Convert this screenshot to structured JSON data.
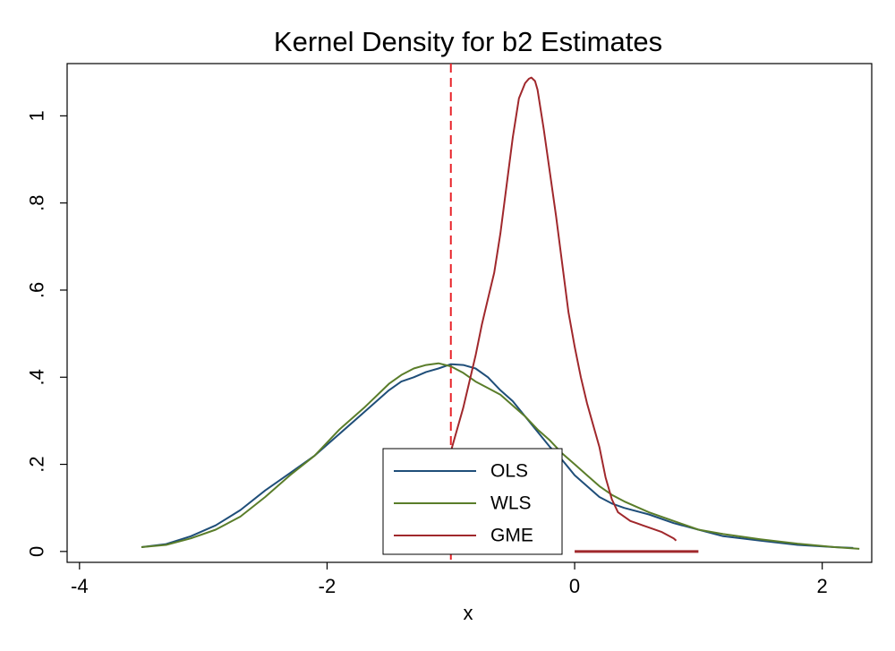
{
  "chart_data": {
    "type": "line",
    "title": "Kernel Density for b2 Estimates",
    "xlabel": "x",
    "ylabel": "",
    "xlim": [
      -4.1,
      2.4
    ],
    "ylim": [
      -0.025,
      1.12
    ],
    "xticks": [
      -4,
      -2,
      0,
      2
    ],
    "xtick_labels": [
      "-4",
      "-2",
      "0",
      "2"
    ],
    "yticks": [
      0,
      0.2,
      0.4,
      0.6,
      0.8,
      1
    ],
    "ytick_labels": [
      "0",
      ".2",
      ".4",
      ".6",
      ".8",
      "1"
    ],
    "grid": false,
    "legend_position": "bottom-center",
    "reference_line": {
      "x": -1,
      "style": "dashed",
      "color": "#e8242a"
    },
    "series": [
      {
        "name": "OLS",
        "color": "#1f4e79",
        "x": [
          -3.5,
          -3.3,
          -3.1,
          -2.9,
          -2.7,
          -2.5,
          -2.3,
          -2.1,
          -1.9,
          -1.7,
          -1.5,
          -1.4,
          -1.3,
          -1.2,
          -1.1,
          -1.0,
          -0.9,
          -0.8,
          -0.7,
          -0.6,
          -0.5,
          -0.4,
          -0.3,
          -0.2,
          -0.1,
          0.0,
          0.1,
          0.2,
          0.3,
          0.4,
          0.6,
          0.8,
          1.0,
          1.2,
          1.5,
          1.8,
          2.1,
          2.25
        ],
        "y": [
          0.01,
          0.017,
          0.035,
          0.06,
          0.095,
          0.14,
          0.18,
          0.22,
          0.27,
          0.32,
          0.37,
          0.39,
          0.4,
          0.412,
          0.42,
          0.43,
          0.428,
          0.42,
          0.4,
          0.37,
          0.345,
          0.31,
          0.275,
          0.24,
          0.21,
          0.175,
          0.15,
          0.125,
          0.11,
          0.1,
          0.085,
          0.065,
          0.05,
          0.035,
          0.025,
          0.015,
          0.01,
          0.008
        ]
      },
      {
        "name": "WLS",
        "color": "#5a7d2a",
        "x": [
          -3.5,
          -3.3,
          -3.1,
          -2.9,
          -2.7,
          -2.5,
          -2.3,
          -2.1,
          -1.9,
          -1.7,
          -1.5,
          -1.4,
          -1.3,
          -1.2,
          -1.1,
          -1.0,
          -0.9,
          -0.8,
          -0.7,
          -0.6,
          -0.5,
          -0.4,
          -0.3,
          -0.2,
          -0.1,
          0.0,
          0.1,
          0.2,
          0.3,
          0.4,
          0.6,
          0.8,
          1.0,
          1.2,
          1.5,
          1.8,
          2.1,
          2.3
        ],
        "y": [
          0.01,
          0.015,
          0.03,
          0.05,
          0.08,
          0.125,
          0.175,
          0.22,
          0.28,
          0.33,
          0.385,
          0.405,
          0.42,
          0.428,
          0.432,
          0.425,
          0.41,
          0.39,
          0.375,
          0.36,
          0.335,
          0.31,
          0.28,
          0.255,
          0.225,
          0.2,
          0.175,
          0.15,
          0.13,
          0.115,
          0.09,
          0.07,
          0.05,
          0.04,
          0.028,
          0.018,
          0.01,
          0.006
        ]
      },
      {
        "name": "GME",
        "color": "#a0282c",
        "x": [
          -1.0,
          -0.95,
          -0.9,
          -0.85,
          -0.8,
          -0.75,
          -0.7,
          -0.65,
          -0.6,
          -0.55,
          -0.5,
          -0.45,
          -0.4,
          -0.37,
          -0.35,
          -0.32,
          -0.3,
          -0.25,
          -0.2,
          -0.15,
          -0.1,
          -0.05,
          0.0,
          0.05,
          0.1,
          0.15,
          0.2,
          0.25,
          0.3,
          0.35,
          0.4,
          0.45,
          0.5,
          0.55,
          0.6,
          0.7,
          0.8,
          0.82
        ],
        "y": [
          0.23,
          0.28,
          0.33,
          0.39,
          0.45,
          0.52,
          0.58,
          0.64,
          0.73,
          0.84,
          0.95,
          1.04,
          1.075,
          1.085,
          1.088,
          1.08,
          1.06,
          0.97,
          0.87,
          0.77,
          0.66,
          0.55,
          0.47,
          0.4,
          0.34,
          0.29,
          0.24,
          0.17,
          0.12,
          0.09,
          0.08,
          0.07,
          0.065,
          0.06,
          0.055,
          0.045,
          0.03,
          0.025
        ]
      }
    ],
    "rug": {
      "color": "#a0282c",
      "x_from": 0.0,
      "x_to": 1.0,
      "y": 0.0
    }
  }
}
